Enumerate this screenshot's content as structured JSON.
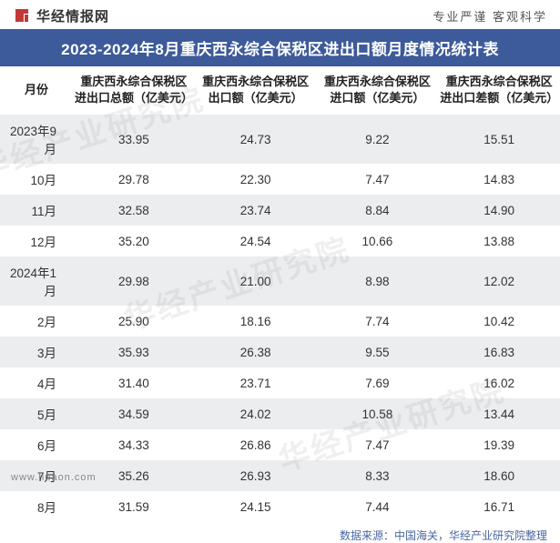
{
  "header": {
    "site_name": "华经情报网",
    "slogan": "专业严谨   客观科学",
    "logo_color": "#c23838"
  },
  "title": "2023-2024年8月重庆西永综合保税区进出口额月度情况统计表",
  "title_bg": "#3d5a9a",
  "columns": [
    "月份",
    "重庆西永综合保税区进出口总额（亿美元）",
    "重庆西永综合保税区出口额（亿美元）",
    "重庆西永综合保税区进口额（亿美元）",
    "重庆西永综合保税区进出口差额（亿美元）"
  ],
  "rows": [
    [
      "2023年9月",
      "33.95",
      "24.73",
      "9.22",
      "15.51"
    ],
    [
      "10月",
      "29.78",
      "22.30",
      "7.47",
      "14.83"
    ],
    [
      "11月",
      "32.58",
      "23.74",
      "8.84",
      "14.90"
    ],
    [
      "12月",
      "35.20",
      "24.54",
      "10.66",
      "13.88"
    ],
    [
      "2024年1月",
      "29.98",
      "21.00",
      "8.98",
      "12.02"
    ],
    [
      "2月",
      "25.90",
      "18.16",
      "7.74",
      "10.42"
    ],
    [
      "3月",
      "35.93",
      "26.38",
      "9.55",
      "16.83"
    ],
    [
      "4月",
      "31.40",
      "23.71",
      "7.69",
      "16.02"
    ],
    [
      "5月",
      "34.59",
      "24.02",
      "10.58",
      "13.44"
    ],
    [
      "6月",
      "34.33",
      "26.86",
      "7.47",
      "19.39"
    ],
    [
      "7月",
      "35.26",
      "26.93",
      "8.33",
      "18.60"
    ],
    [
      "8月",
      "31.59",
      "24.15",
      "7.44",
      "16.71"
    ]
  ],
  "alt_row_bg": "#ecedef",
  "footer": "数据来源：中国海关，华经产业研究院整理",
  "watermark_text": "华经产业研究院",
  "domain_text": "www.huaon.com"
}
